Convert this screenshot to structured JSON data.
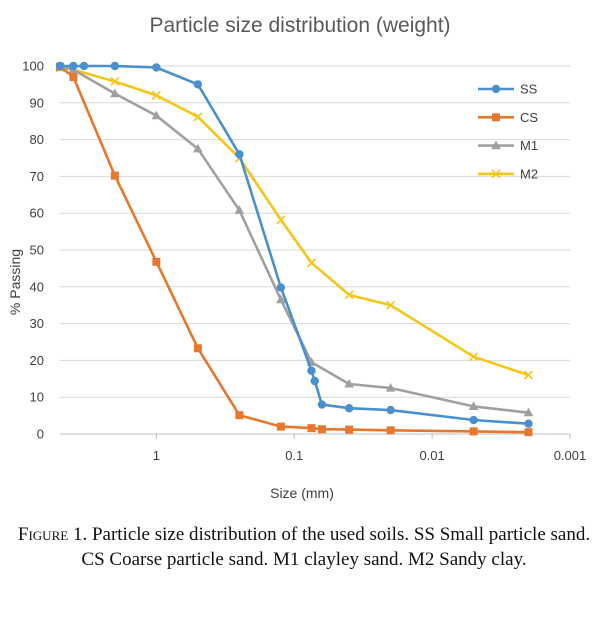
{
  "chart_data": {
    "type": "line",
    "title": "Particle size distribution (weight)",
    "xlabel": "Size (mm)",
    "ylabel": "% Passing",
    "x_scale": "log",
    "x_reversed": true,
    "xlim": [
      5,
      0.001
    ],
    "ylim": [
      0,
      100
    ],
    "x_ticks": [
      1,
      0.1,
      0.01,
      0.001
    ],
    "x_tick_labels": [
      "1",
      "0.1",
      "0.01",
      "0.001"
    ],
    "y_ticks": [
      0,
      10,
      20,
      30,
      40,
      50,
      60,
      70,
      80,
      90,
      100
    ],
    "y_tick_labels": [
      "0",
      "10",
      "20",
      "30",
      "40",
      "50",
      "60",
      "70",
      "80",
      "90",
      "100"
    ],
    "grid": "horizontal",
    "legend_position": "right",
    "series": [
      {
        "name": "SS",
        "color": "#4a90cf",
        "marker": "circle",
        "points": [
          [
            5,
            100
          ],
          [
            4,
            100
          ],
          [
            3.35,
            100
          ],
          [
            2,
            100
          ],
          [
            1,
            99.6
          ],
          [
            0.5,
            95
          ],
          [
            0.25,
            76
          ],
          [
            0.125,
            39.8
          ],
          [
            0.075,
            17.2
          ],
          [
            0.071,
            14.4
          ],
          [
            0.063,
            8
          ],
          [
            0.04,
            7
          ],
          [
            0.02,
            6.5
          ],
          [
            0.005,
            3.8
          ],
          [
            0.002,
            2.8
          ]
        ]
      },
      {
        "name": "CS",
        "color": "#e8772e",
        "marker": "square",
        "points": [
          [
            5,
            99.8
          ],
          [
            4,
            97
          ],
          [
            2,
            70.2
          ],
          [
            1,
            46.8
          ],
          [
            0.5,
            23.3
          ],
          [
            0.25,
            5.1
          ],
          [
            0.125,
            2
          ],
          [
            0.075,
            1.6
          ],
          [
            0.063,
            1.3
          ],
          [
            0.04,
            1.2
          ],
          [
            0.02,
            1
          ],
          [
            0.005,
            0.7
          ],
          [
            0.002,
            0.5
          ]
        ]
      },
      {
        "name": "M1",
        "color": "#a0a0a0",
        "marker": "triangle",
        "points": [
          [
            5,
            100
          ],
          [
            4,
            99
          ],
          [
            2,
            92.5
          ],
          [
            1,
            86.5
          ],
          [
            0.5,
            77.5
          ],
          [
            0.25,
            60.8
          ],
          [
            0.125,
            36.5
          ],
          [
            0.075,
            19.5
          ],
          [
            0.04,
            13.6
          ],
          [
            0.02,
            12.5
          ],
          [
            0.005,
            7.5
          ],
          [
            0.002,
            5.8
          ]
        ]
      },
      {
        "name": "M2",
        "color": "#f5c518",
        "marker": "x",
        "points": [
          [
            5,
            99.5
          ],
          [
            4,
            99
          ],
          [
            2,
            95.8
          ],
          [
            1,
            92
          ],
          [
            0.5,
            86.2
          ],
          [
            0.25,
            75
          ],
          [
            0.125,
            58.2
          ],
          [
            0.075,
            46.5
          ],
          [
            0.04,
            37.8
          ],
          [
            0.02,
            35
          ],
          [
            0.005,
            21
          ],
          [
            0.002,
            16
          ]
        ]
      }
    ]
  },
  "caption": {
    "figure_word": "Figure",
    "text": " 1. Particle size distribution of the used soils. SS Small particle sand. CS Coarse particle sand. M1 clayley sand. M2 Sandy clay."
  }
}
